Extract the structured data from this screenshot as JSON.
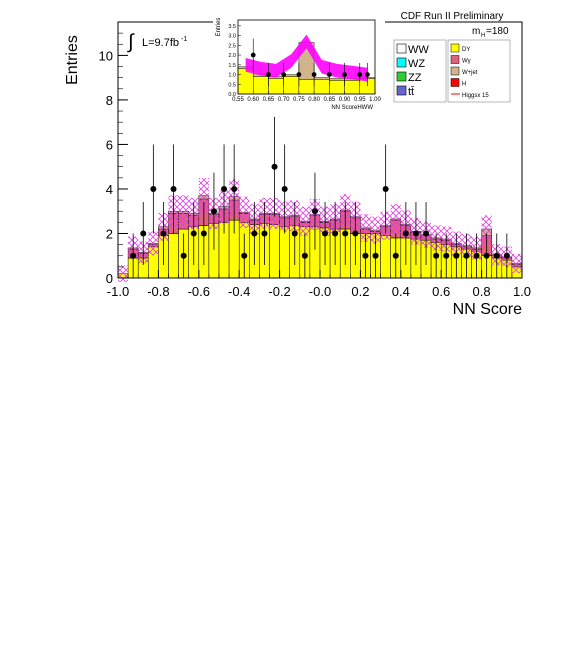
{
  "header": {
    "title": "CDF Run II Preliminary",
    "mass_label_main": "m",
    "mass_label_sub": "H",
    "mass_value": "=180"
  },
  "luminosity": {
    "integral": "∫",
    "text": "L=9.7fb",
    "exponent": "-1"
  },
  "legend": {
    "left": [
      {
        "label": "WW",
        "color": "#ffffff"
      },
      {
        "label": "WZ",
        "color": "#00ffff"
      },
      {
        "label": "ZZ",
        "color": "#33cc33"
      },
      {
        "label": "tt̄",
        "color": "#6666cc"
      }
    ],
    "right": [
      {
        "label": "DY",
        "color": "#ffff00"
      },
      {
        "label": "Wγ",
        "color": "#e0607e"
      },
      {
        "label": "W+jet",
        "color": "#d2b48c"
      },
      {
        "label": "H",
        "color": "#ff0000"
      },
      {
        "label": "Higgsx 15",
        "color": "#ff0000",
        "line": true
      }
    ]
  },
  "chart_data": [
    {
      "type": "bar",
      "title": "",
      "xlabel": "NN Score",
      "ylabel": "Entries",
      "xlim": [
        -1.0,
        1.0
      ],
      "ylim": [
        0,
        11.5
      ],
      "x_ticks": [
        -1.0,
        -0.8,
        -0.6,
        -0.4,
        -0.2,
        0.0,
        0.2,
        0.4,
        0.6,
        0.8,
        1.0
      ],
      "x_tick_labels": [
        "-1.0",
        "-0.8",
        "-0.6",
        "-0.4",
        "-0.2",
        "-0.0",
        "0.2",
        "0.4",
        "0.6",
        "0.8",
        "1.0"
      ],
      "y_ticks": [
        0,
        2,
        4,
        6,
        8,
        10
      ],
      "bin_edges_start": -1.0,
      "bin_width": 0.05,
      "series": [
        {
          "name": "DY",
          "values": [
            0.2,
            0.9,
            0.9,
            1.4,
            1.9,
            2.0,
            2.2,
            2.3,
            2.35,
            2.45,
            2.5,
            2.6,
            2.5,
            2.4,
            2.45,
            2.4,
            2.3,
            2.35,
            2.3,
            2.3,
            2.25,
            2.2,
            2.2,
            2.0,
            2.0,
            2.0,
            1.9,
            1.8,
            1.8,
            1.75,
            1.7,
            1.6,
            1.5,
            1.4,
            1.3,
            1.2,
            1.0,
            0.9,
            0.8,
            0.5
          ]
        },
        {
          "name": "Wγ",
          "values": [
            0.0,
            0.4,
            0.2,
            0.1,
            0.3,
            0.9,
            0.7,
            0.5,
            1.2,
            0.4,
            0.6,
            0.9,
            0.4,
            0.2,
            0.4,
            0.45,
            0.4,
            0.4,
            0.2,
            0.5,
            0.25,
            0.4,
            0.8,
            0.7,
            0.2,
            0.1,
            0.4,
            0.8,
            0.55,
            0.3,
            0.2,
            0.15,
            0.2,
            0.1,
            0.1,
            0.1,
            0.9,
            0.1,
            0.1,
            0.1
          ]
        },
        {
          "name": "W+jet",
          "values": [
            0.0,
            0.05,
            0.05,
            0.05,
            0.1,
            0.1,
            0.1,
            0.1,
            0.15,
            0.05,
            0.1,
            0.15,
            0.05,
            0.05,
            0.05,
            0.05,
            0.05,
            0.05,
            0.05,
            0.05,
            0.05,
            0.05,
            0.05,
            0.05,
            0.05,
            0.05,
            0.05,
            0.05,
            0.05,
            0.05,
            0.05,
            0.05,
            0.05,
            0.05,
            0.05,
            0.05,
            0.3,
            0.05,
            0.05,
            0.05
          ]
        },
        {
          "name": "Data",
          "points": [
            [
              -0.925,
              1
            ],
            [
              -0.875,
              2
            ],
            [
              -0.825,
              4
            ],
            [
              -0.775,
              2
            ],
            [
              -0.725,
              4
            ],
            [
              -0.675,
              1
            ],
            [
              -0.625,
              2
            ],
            [
              -0.575,
              2
            ],
            [
              -0.525,
              3
            ],
            [
              -0.475,
              4
            ],
            [
              -0.425,
              4
            ],
            [
              -0.375,
              1
            ],
            [
              -0.325,
              2
            ],
            [
              -0.275,
              2
            ],
            [
              -0.225,
              5
            ],
            [
              -0.175,
              4
            ],
            [
              -0.125,
              2
            ],
            [
              -0.075,
              1
            ],
            [
              -0.025,
              3
            ],
            [
              0.025,
              2
            ],
            [
              0.075,
              2
            ],
            [
              0.125,
              2
            ],
            [
              0.175,
              2
            ],
            [
              0.225,
              1
            ],
            [
              0.275,
              1
            ],
            [
              0.325,
              4
            ],
            [
              0.375,
              1
            ],
            [
              0.425,
              2
            ],
            [
              0.475,
              2
            ],
            [
              0.525,
              2
            ],
            [
              0.575,
              1
            ],
            [
              0.625,
              1
            ],
            [
              0.675,
              1
            ],
            [
              0.725,
              1
            ],
            [
              0.775,
              1
            ],
            [
              0.825,
              1
            ],
            [
              0.875,
              1
            ],
            [
              0.925,
              1
            ]
          ]
        }
      ]
    },
    {
      "type": "bar",
      "title": "",
      "xlabel": "NN ScoreHWW",
      "ylabel": "Entries",
      "xlim": [
        0.55,
        1.0
      ],
      "ylim": [
        0,
        3.8
      ],
      "x_tick_labels": [
        "0.55",
        "0.60",
        "0.65",
        "0.70",
        "0.75",
        "0.80",
        "0.85",
        "0.90",
        "0.95",
        "1.00"
      ],
      "y_tick_labels": [
        "0.0",
        "0.5",
        "1.0",
        "1.5",
        "2.0",
        "2.5",
        "3.0",
        "3.5"
      ],
      "series": [
        {
          "name": "DY",
          "values": [
            1.3,
            0.9,
            0.8,
            0.9,
            0.75,
            0.75,
            0.7,
            0.7,
            0.8
          ]
        },
        {
          "name": "W+jet",
          "values": [
            0.1,
            0.15,
            0.1,
            0.1,
            1.9,
            0.1,
            0.1,
            0.1,
            0.05
          ]
        },
        {
          "name": "Higgsx 15",
          "values": [
            1.5,
            1.3,
            1.2,
            1.7,
            2.7,
            1.4,
            1.2,
            1.1,
            1.0
          ]
        },
        {
          "name": "Data",
          "points": [
            [
              0.6,
              2
            ],
            [
              0.65,
              1
            ],
            [
              0.7,
              1
            ],
            [
              0.75,
              1
            ],
            [
              0.8,
              1
            ],
            [
              0.85,
              1
            ],
            [
              0.9,
              1
            ],
            [
              0.95,
              1
            ],
            [
              0.975,
              1
            ]
          ]
        }
      ]
    }
  ]
}
